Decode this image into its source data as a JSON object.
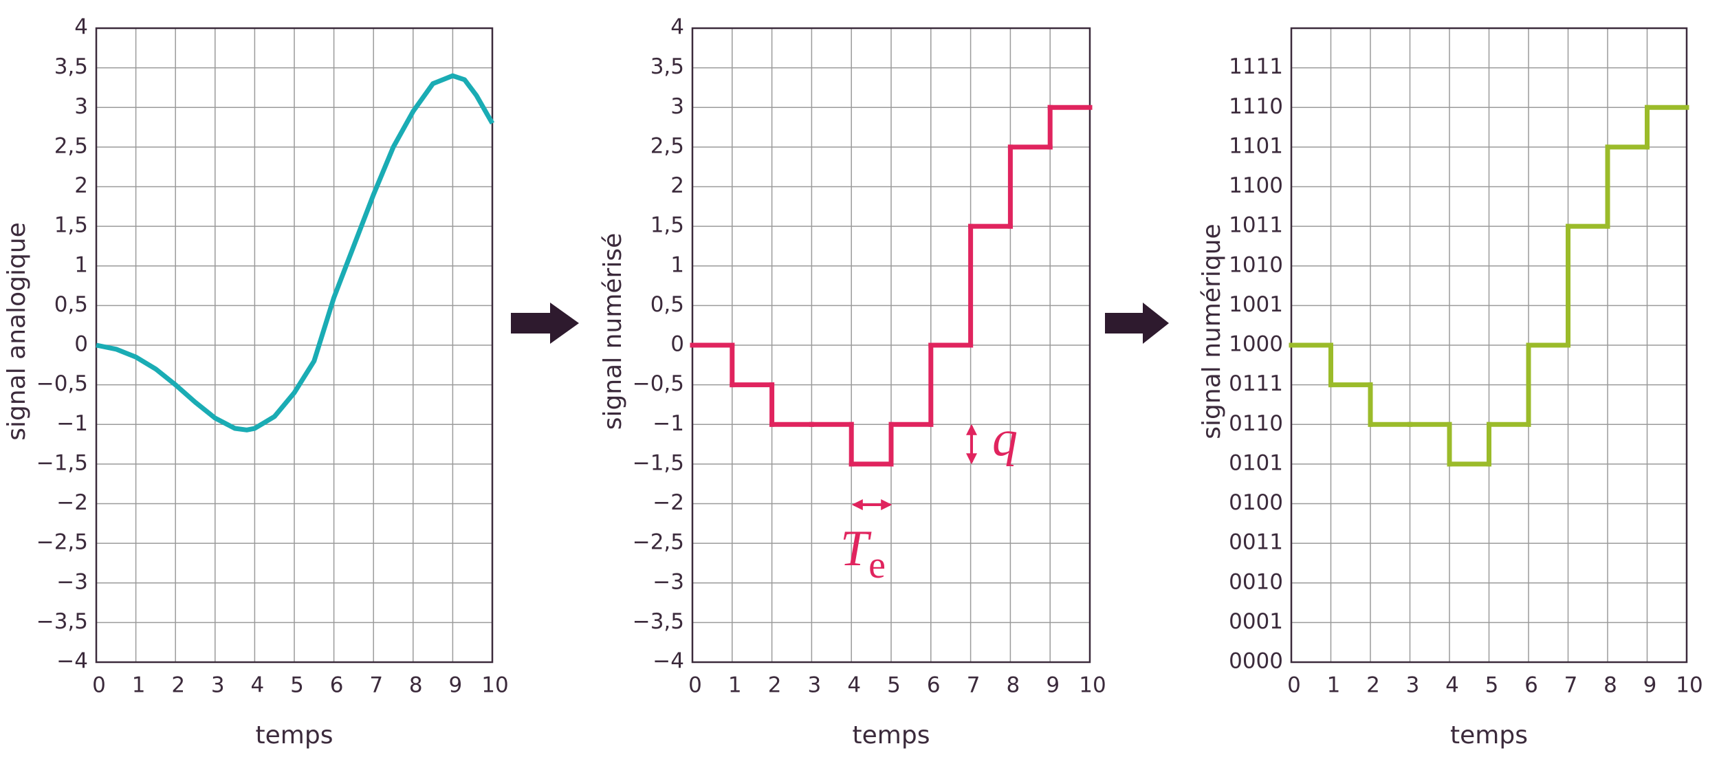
{
  "chart_data": [
    {
      "type": "line",
      "y_label": "signal analogique",
      "x_label": "temps",
      "color": "#1aacb4",
      "grid": true,
      "x": [
        0,
        0.5,
        1,
        1.5,
        2,
        2.5,
        3,
        3.5,
        3.8,
        4,
        4.5,
        5,
        5.5,
        6,
        6.5,
        7,
        7.5,
        8,
        8.5,
        9,
        9.3,
        9.6,
        10
      ],
      "values": [
        0,
        -0.05,
        -0.15,
        -0.3,
        -0.5,
        -0.72,
        -0.92,
        -1.05,
        -1.07,
        -1.05,
        -0.9,
        -0.6,
        -0.2,
        0.6,
        1.25,
        1.9,
        2.5,
        2.95,
        3.3,
        3.4,
        3.35,
        3.15,
        2.8
      ],
      "xlim": [
        0,
        10
      ],
      "ylim": [
        -4,
        4
      ],
      "xticks": [
        0,
        1,
        2,
        3,
        4,
        5,
        6,
        7,
        8,
        9,
        10
      ],
      "yticks": [
        {
          "value": -4,
          "label": "−4"
        },
        {
          "value": -3.5,
          "label": "−3,5"
        },
        {
          "value": -3,
          "label": "−3"
        },
        {
          "value": -2.5,
          "label": "−2,5"
        },
        {
          "value": -2,
          "label": "−2"
        },
        {
          "value": -1.5,
          "label": "−1,5"
        },
        {
          "value": -1,
          "label": "−1"
        },
        {
          "value": -0.5,
          "label": "−0,5"
        },
        0,
        {
          "value": 0.5,
          "label": "0,5"
        },
        1,
        {
          "value": 1.5,
          "label": "1,5"
        },
        2,
        {
          "value": 2.5,
          "label": "2,5"
        },
        3,
        {
          "value": 3.5,
          "label": "3,5"
        },
        4
      ]
    },
    {
      "type": "step",
      "y_label": "signal numérisé",
      "x_label": "temps",
      "color": "#e0245e",
      "grid": true,
      "x": [
        0,
        1,
        2,
        3,
        4,
        5,
        6,
        7,
        8,
        9
      ],
      "values": [
        0,
        -0.5,
        -1,
        -1,
        -1.5,
        -1,
        0,
        1.5,
        2.5,
        3
      ],
      "xlim": [
        0,
        10
      ],
      "ylim": [
        -4,
        4
      ],
      "xticks": [
        0,
        1,
        2,
        3,
        4,
        5,
        6,
        7,
        8,
        9,
        10
      ],
      "yticks": [
        {
          "value": -4,
          "label": "−4"
        },
        {
          "value": -3.5,
          "label": "−3,5"
        },
        {
          "value": -3,
          "label": "−3"
        },
        {
          "value": -2.5,
          "label": "−2,5"
        },
        {
          "value": -2,
          "label": "−2"
        },
        {
          "value": -1.5,
          "label": "−1,5"
        },
        {
          "value": -1,
          "label": "−1"
        },
        {
          "value": -0.5,
          "label": "−0,5"
        },
        0,
        {
          "value": 0.5,
          "label": "0,5"
        },
        1,
        {
          "value": 1.5,
          "label": "1,5"
        },
        2,
        {
          "value": 2.5,
          "label": "2,5"
        },
        3,
        {
          "value": 3.5,
          "label": "3,5"
        },
        4
      ],
      "annotations": [
        {
          "text": "T",
          "subscript": "e"
        },
        {
          "text": "q"
        }
      ]
    },
    {
      "type": "step",
      "y_label": "signal numérique",
      "x_label": "temps",
      "color": "#9bbb2a",
      "grid": true,
      "x": [
        0,
        1,
        2,
        3,
        4,
        5,
        6,
        7,
        8,
        9
      ],
      "values": [
        8,
        7,
        6,
        6,
        5,
        6,
        8,
        11,
        13,
        14
      ],
      "xlim": [
        0,
        10
      ],
      "ylim": [
        0,
        16
      ],
      "xticks": [
        0,
        1,
        2,
        3,
        4,
        5,
        6,
        7,
        8,
        9,
        10
      ],
      "yticks": [
        {
          "value": 0,
          "label": "0000"
        },
        {
          "value": 1,
          "label": "0001"
        },
        {
          "value": 2,
          "label": "0010"
        },
        {
          "value": 3,
          "label": "0011"
        },
        {
          "value": 4,
          "label": "0100"
        },
        {
          "value": 5,
          "label": "0101"
        },
        {
          "value": 6,
          "label": "0110"
        },
        {
          "value": 7,
          "label": "0111"
        },
        {
          "value": 8,
          "label": "1000"
        },
        {
          "value": 9,
          "label": "1001"
        },
        {
          "value": 10,
          "label": "1010"
        },
        {
          "value": 11,
          "label": "1011"
        },
        {
          "value": 12,
          "label": "1100"
        },
        {
          "value": 13,
          "label": "1101"
        },
        {
          "value": 14,
          "label": "1110"
        },
        {
          "value": 15,
          "label": "1111"
        }
      ]
    }
  ]
}
